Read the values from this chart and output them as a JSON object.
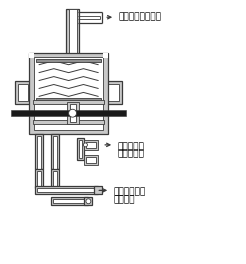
{
  "bg_color": "#ffffff",
  "line_color": "#3a3a3a",
  "fill_gray": "#c8c8c8",
  "fill_dark": "#909090",
  "fill_white": "#ffffff",
  "labels": {
    "surge": "サージ・タンクへ",
    "delivery_1": "デリバリ・",
    "delivery_2": "パイプより",
    "fuel_1": "フューエル・",
    "fuel_2": "タンクへ"
  },
  "font_size": 6.5,
  "lw_main": 0.9,
  "lw_thin": 0.6
}
